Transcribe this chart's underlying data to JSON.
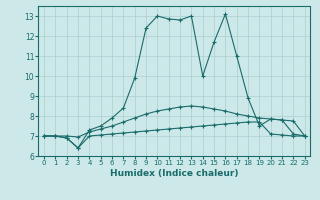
{
  "xlabel": "Humidex (Indice chaleur)",
  "xlim": [
    -0.5,
    23.5
  ],
  "ylim": [
    6.0,
    13.5
  ],
  "yticks": [
    6,
    7,
    8,
    9,
    10,
    11,
    12,
    13
  ],
  "xticks": [
    0,
    1,
    2,
    3,
    4,
    5,
    6,
    7,
    8,
    9,
    10,
    11,
    12,
    13,
    14,
    15,
    16,
    17,
    18,
    19,
    20,
    21,
    22,
    23
  ],
  "bg_color": "#cce8e8",
  "grid_color": "#aacfcf",
  "line_color": "#1a6b6b",
  "line1_x": [
    0,
    1,
    2,
    3,
    4,
    5,
    6,
    7,
    8,
    9,
    10,
    11,
    12,
    13,
    14,
    15,
    16,
    17,
    18,
    19,
    20,
    21,
    22,
    23
  ],
  "line1_y": [
    7.0,
    7.0,
    6.9,
    6.4,
    7.0,
    7.05,
    7.1,
    7.15,
    7.2,
    7.25,
    7.3,
    7.35,
    7.4,
    7.45,
    7.5,
    7.55,
    7.6,
    7.65,
    7.7,
    7.7,
    7.1,
    7.05,
    7.0,
    7.0
  ],
  "line2_x": [
    0,
    1,
    2,
    3,
    4,
    5,
    6,
    7,
    8,
    9,
    10,
    11,
    12,
    13,
    14,
    15,
    16,
    17,
    18,
    19,
    20,
    21,
    22,
    23
  ],
  "line2_y": [
    7.0,
    7.0,
    7.0,
    6.95,
    7.2,
    7.35,
    7.5,
    7.7,
    7.9,
    8.1,
    8.25,
    8.35,
    8.45,
    8.5,
    8.45,
    8.35,
    8.25,
    8.1,
    8.0,
    7.9,
    7.85,
    7.8,
    7.75,
    7.0
  ],
  "line3_x": [
    0,
    1,
    2,
    3,
    4,
    5,
    6,
    7,
    8,
    9,
    10,
    11,
    12,
    13,
    14,
    15,
    16,
    17,
    18,
    19,
    20,
    21,
    22,
    23
  ],
  "line3_y": [
    7.0,
    7.0,
    6.9,
    6.4,
    7.3,
    7.5,
    7.9,
    8.4,
    9.9,
    12.4,
    13.0,
    12.85,
    12.8,
    13.0,
    10.0,
    11.7,
    13.1,
    11.0,
    8.9,
    7.5,
    7.85,
    7.8,
    7.1,
    7.0
  ]
}
